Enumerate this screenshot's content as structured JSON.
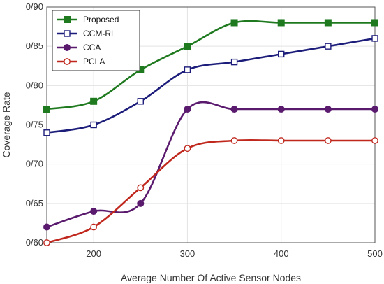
{
  "chart_data": {
    "type": "line",
    "xlabel": "Average Number Of Active Sensor Nodes",
    "ylabel": "Coverage Rate",
    "xlim": [
      150,
      500
    ],
    "ylim": [
      0.6,
      0.9
    ],
    "x_ticks": [
      200,
      300,
      400,
      500
    ],
    "x_tick_labels": [
      "200",
      "300",
      "400",
      "500"
    ],
    "y_ticks": [
      0.6,
      0.65,
      0.7,
      0.75,
      0.8,
      0.85,
      0.9
    ],
    "y_tick_labels": [
      "0/60",
      "0/65",
      "0/70",
      "0/75",
      "0/80",
      "0/85",
      "0/90"
    ],
    "grid": true,
    "legend_position": "top-left",
    "x": [
      150,
      200,
      250,
      300,
      350,
      400,
      450,
      500
    ],
    "series": [
      {
        "name": "Proposed",
        "color": "#1f7a1f",
        "marker": "filled-square",
        "values": [
          0.77,
          0.78,
          0.82,
          0.85,
          0.88,
          0.88,
          0.88,
          0.88
        ]
      },
      {
        "name": "CCM-RL",
        "color": "#1c1c7a",
        "marker": "hollow-square",
        "values": [
          0.74,
          0.75,
          0.78,
          0.82,
          0.83,
          0.84,
          0.85,
          0.86
        ]
      },
      {
        "name": "CCA",
        "color": "#5a1a6e",
        "marker": "filled-circle",
        "values": [
          0.62,
          0.64,
          0.65,
          0.77,
          0.77,
          0.77,
          0.77,
          0.77
        ]
      },
      {
        "name": "PCLA",
        "color": "#c0281e",
        "marker": "hollow-circle",
        "values": [
          0.6,
          0.62,
          0.67,
          0.72,
          0.73,
          0.73,
          0.73,
          0.73
        ]
      }
    ]
  }
}
